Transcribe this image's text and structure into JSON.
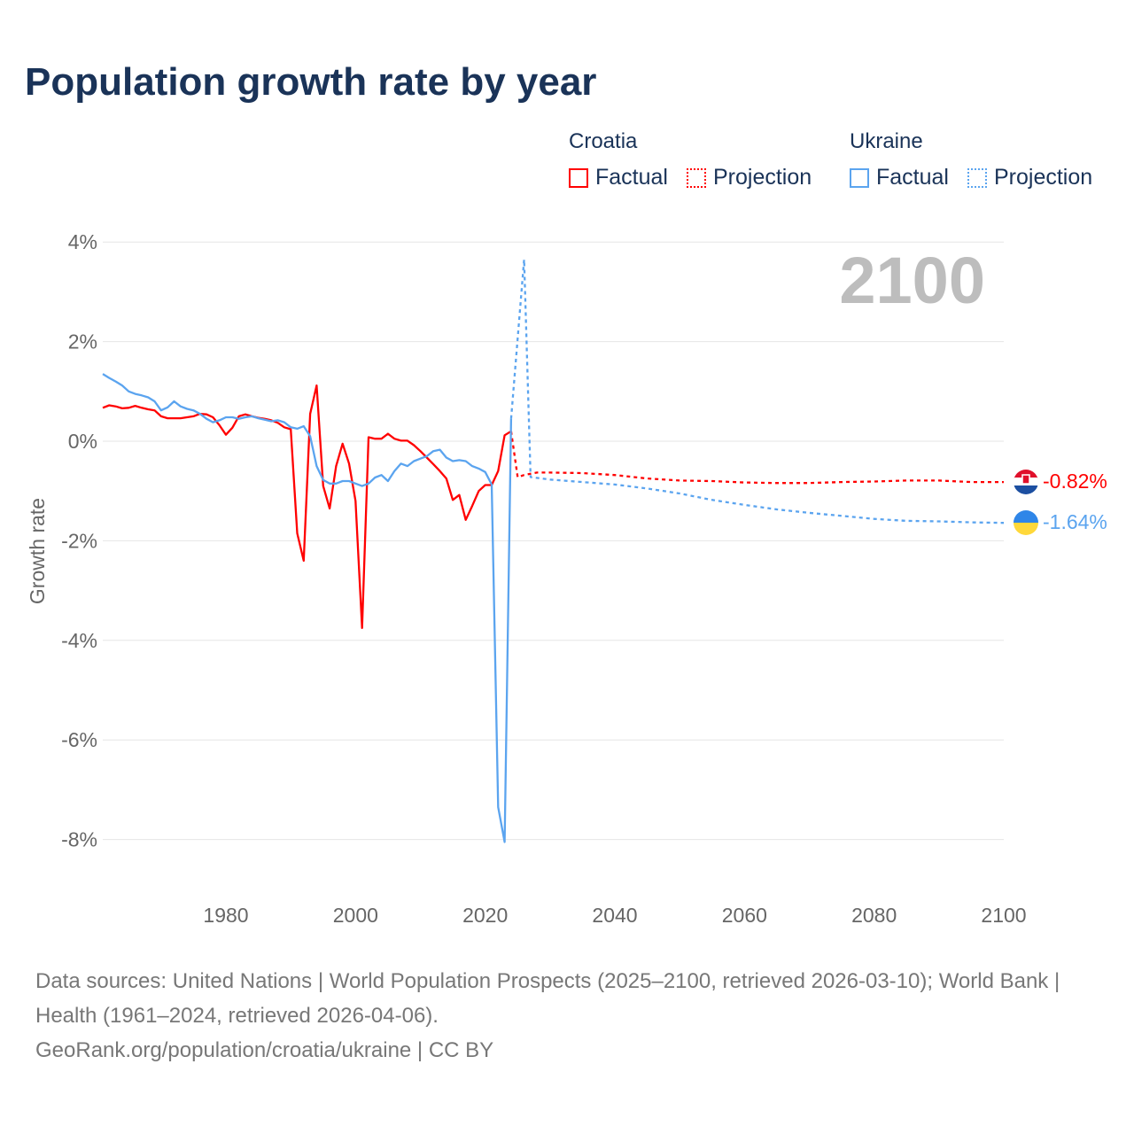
{
  "title": "Population growth rate by year",
  "legend": {
    "groups": [
      {
        "name": "Croatia",
        "color": "#ff0000",
        "factual": "Factual",
        "projection": "Projection"
      },
      {
        "name": "Ukraine",
        "color": "#5ba4ef",
        "factual": "Factual",
        "projection": "Projection"
      }
    ]
  },
  "year_display": "2100",
  "end_labels": {
    "croatia": "-0.82%",
    "ukraine": "-1.64%"
  },
  "footer": {
    "sources": "Data sources: United Nations | World Population Prospects (2025–2100, retrieved 2026-03-10); World Bank | Health (1961–2024, retrieved 2026-04-06).",
    "credit": "GeoRank.org/population/croatia/ukraine | CC BY"
  },
  "chart_data": {
    "type": "line",
    "title": "Population growth rate by year",
    "xlabel": "",
    "ylabel": "Growth rate",
    "xlim": [
      1961,
      2100
    ],
    "ylim": [
      -9,
      4.5
    ],
    "xticks": [
      {
        "v": 1980,
        "label": "1980"
      },
      {
        "v": 2000,
        "label": "2000"
      },
      {
        "v": 2020,
        "label": "2020"
      },
      {
        "v": 2040,
        "label": "2040"
      },
      {
        "v": 2060,
        "label": "2060"
      },
      {
        "v": 2080,
        "label": "2080"
      },
      {
        "v": 2100,
        "label": "2100"
      }
    ],
    "yticks": [
      {
        "v": 4,
        "label": "4%"
      },
      {
        "v": 2,
        "label": "2%"
      },
      {
        "v": 0,
        "label": "0%"
      },
      {
        "v": -2,
        "label": "-2%"
      },
      {
        "v": -4,
        "label": "-4%"
      },
      {
        "v": -6,
        "label": "-6%"
      },
      {
        "v": -8,
        "label": "-8%"
      }
    ],
    "grid": true,
    "legend_position": "top-right",
    "series": [
      {
        "name": "Croatia Factual",
        "color": "#ff0000",
        "dashed": false,
        "start": 1961,
        "values": [
          0.67,
          0.72,
          0.7,
          0.66,
          0.67,
          0.71,
          0.67,
          0.64,
          0.62,
          0.5,
          0.46,
          0.46,
          0.46,
          0.48,
          0.5,
          0.55,
          0.54,
          0.48,
          0.32,
          0.13,
          0.27,
          0.5,
          0.54,
          0.5,
          0.47,
          0.45,
          0.42,
          0.37,
          0.28,
          0.24,
          -1.85,
          -2.4,
          0.55,
          1.12,
          -0.9,
          -1.35,
          -0.5,
          -0.05,
          -0.45,
          -1.2,
          -3.75,
          0.08,
          0.05,
          0.05,
          0.15,
          0.05,
          0.01,
          0.01,
          -0.08,
          -0.2,
          -0.33,
          -0.46,
          -0.6,
          -0.75,
          -1.18,
          -1.08,
          -1.58,
          -1.3,
          -1.0,
          -0.88,
          -0.88,
          -0.6,
          0.12,
          0.2
        ]
      },
      {
        "name": "Croatia Projection",
        "color": "#ff0000",
        "dashed": true,
        "points": [
          [
            2024,
            0.2
          ],
          [
            2025,
            -0.72
          ],
          [
            2026,
            -0.68
          ],
          [
            2028,
            -0.63
          ],
          [
            2030,
            -0.63
          ],
          [
            2035,
            -0.64
          ],
          [
            2040,
            -0.68
          ],
          [
            2045,
            -0.75
          ],
          [
            2050,
            -0.79
          ],
          [
            2055,
            -0.8
          ],
          [
            2060,
            -0.83
          ],
          [
            2065,
            -0.84
          ],
          [
            2070,
            -0.84
          ],
          [
            2075,
            -0.82
          ],
          [
            2080,
            -0.81
          ],
          [
            2085,
            -0.79
          ],
          [
            2090,
            -0.79
          ],
          [
            2095,
            -0.82
          ],
          [
            2100,
            -0.82
          ]
        ]
      },
      {
        "name": "Ukraine Factual",
        "color": "#5ba4ef",
        "dashed": false,
        "start": 1961,
        "values": [
          1.35,
          1.27,
          1.2,
          1.12,
          1.0,
          0.95,
          0.92,
          0.88,
          0.8,
          0.62,
          0.68,
          0.8,
          0.7,
          0.65,
          0.62,
          0.55,
          0.45,
          0.38,
          0.42,
          0.48,
          0.48,
          0.45,
          0.48,
          0.5,
          0.46,
          0.43,
          0.4,
          0.42,
          0.38,
          0.28,
          0.25,
          0.3,
          0.1,
          -0.5,
          -0.78,
          -0.85,
          -0.85,
          -0.8,
          -0.8,
          -0.85,
          -0.9,
          -0.85,
          -0.73,
          -0.68,
          -0.8,
          -0.6,
          -0.45,
          -0.5,
          -0.4,
          -0.35,
          -0.3,
          -0.2,
          -0.17,
          -0.33,
          -0.4,
          -0.38,
          -0.4,
          -0.5,
          -0.55,
          -0.62,
          -0.87,
          -7.35,
          -8.05,
          0.45
        ]
      },
      {
        "name": "Ukraine Projection",
        "color": "#5ba4ef",
        "dashed": true,
        "points": [
          [
            2024,
            0.45
          ],
          [
            2026,
            3.65
          ],
          [
            2027,
            -0.72
          ],
          [
            2030,
            -0.77
          ],
          [
            2035,
            -0.82
          ],
          [
            2040,
            -0.87
          ],
          [
            2045,
            -0.95
          ],
          [
            2050,
            -1.05
          ],
          [
            2055,
            -1.18
          ],
          [
            2060,
            -1.28
          ],
          [
            2065,
            -1.37
          ],
          [
            2070,
            -1.44
          ],
          [
            2075,
            -1.5
          ],
          [
            2080,
            -1.56
          ],
          [
            2085,
            -1.6
          ],
          [
            2090,
            -1.61
          ],
          [
            2095,
            -1.63
          ],
          [
            2100,
            -1.64
          ]
        ]
      }
    ]
  }
}
